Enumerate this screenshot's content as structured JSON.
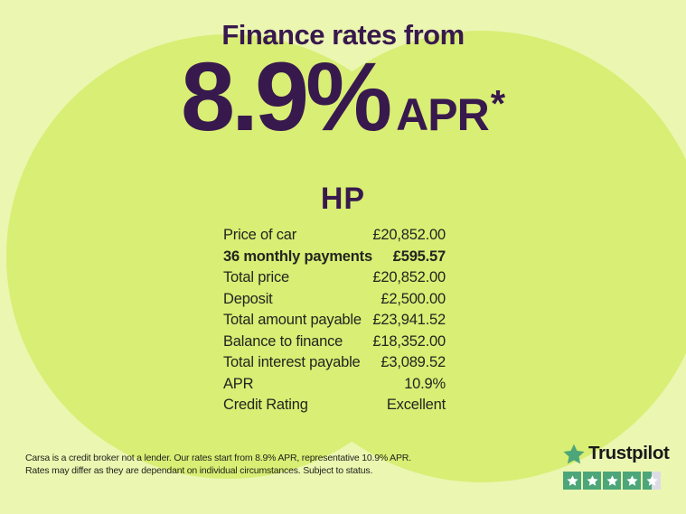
{
  "page": {
    "background_pale": "#EBF6B1",
    "background_circle": "#D8EE74",
    "accent_purple": "#38194E"
  },
  "header": {
    "kicker": "Finance rates from",
    "rate_value": "8.9%",
    "rate_suffix": "APR",
    "rate_asterisk": "*"
  },
  "finance_table": {
    "title": "HP",
    "rows": [
      {
        "label": "Price of car",
        "value": "£20,852.00",
        "bold": false
      },
      {
        "label": "36 monthly payments",
        "value": "£595.57",
        "bold": true
      },
      {
        "label": "Total price",
        "value": "£20,852.00",
        "bold": false
      },
      {
        "label": "Deposit",
        "value": "£2,500.00",
        "bold": false
      },
      {
        "label": "Total amount payable",
        "value": "£23,941.52",
        "bold": false
      },
      {
        "label": "Balance to finance",
        "value": "£18,352.00",
        "bold": false
      },
      {
        "label": "Total interest payable",
        "value": "£3,089.52",
        "bold": false
      },
      {
        "label": "APR",
        "value": "10.9%",
        "bold": false
      },
      {
        "label": "Credit Rating",
        "value": "Excellent",
        "bold": false
      }
    ]
  },
  "disclaimer": {
    "line1": "Carsa is a credit broker not a lender. Our rates start from 8.9% APR, representative 10.9% APR.",
    "line2": "Rates may differ as they are dependant on individual circumstances. Subject to status."
  },
  "trustpilot": {
    "brand": "Trustpilot",
    "rating_stars": 4.5,
    "star_color": "#4CA679",
    "empty_color": "#DCDCE6",
    "wordmark_color": "#191919"
  }
}
